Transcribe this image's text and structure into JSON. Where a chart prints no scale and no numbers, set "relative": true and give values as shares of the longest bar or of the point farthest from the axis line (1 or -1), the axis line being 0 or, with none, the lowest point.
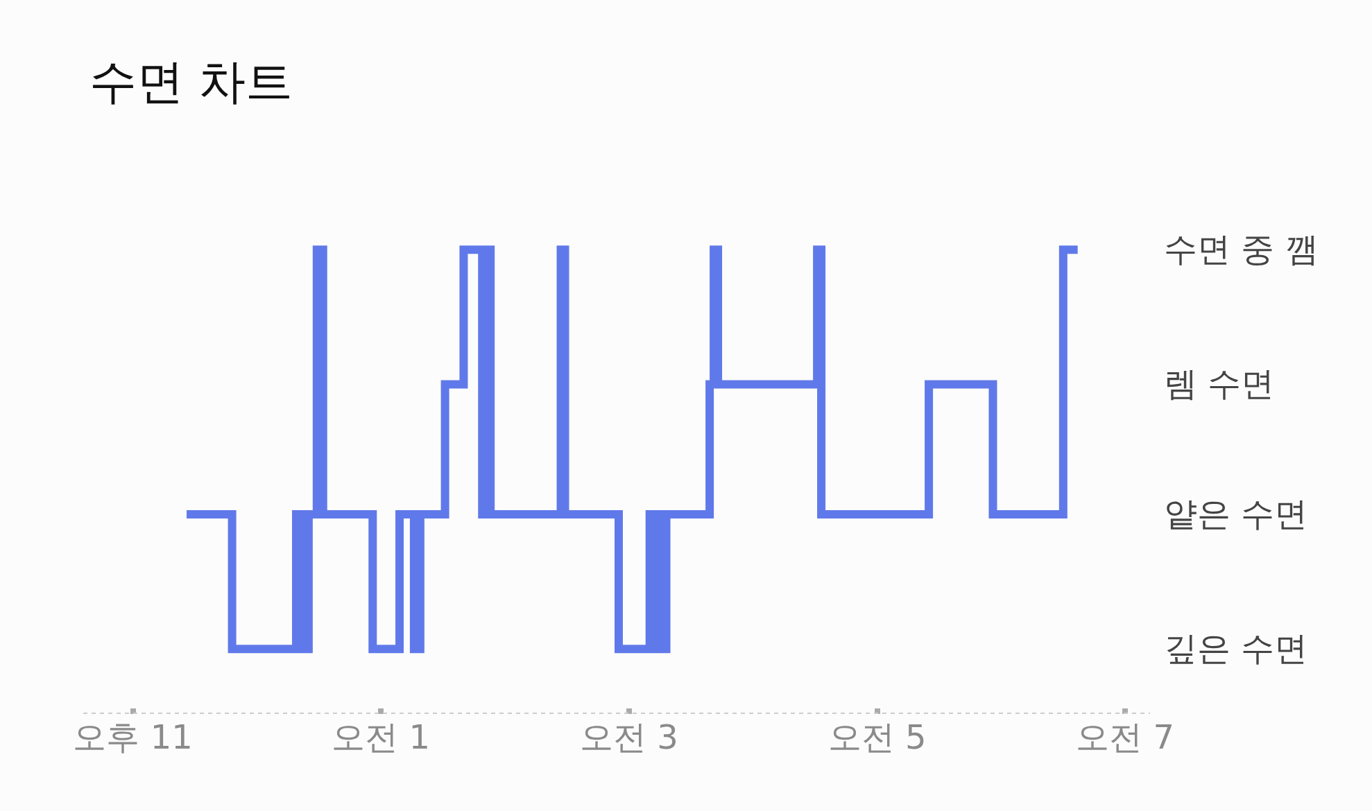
{
  "chart_data": {
    "type": "step",
    "title": "수면 차트",
    "relative": true,
    "x": [
      "--01-01T23:26",
      "--01-01T23:48",
      "--01-02T00:19",
      "--01-02T00:22",
      "--01-02T00:25",
      "--01-02T00:29",
      "--01-02T00:32",
      "--01-02T00:56",
      "--01-02T01:09",
      "--01-02T01:16",
      "--01-02T01:19",
      "--01-02T01:31",
      "--01-02T01:40",
      "--01-02T01:49",
      "--01-02T01:50",
      "--01-02T01:53",
      "--01-02T02:27",
      "--01-02T02:29",
      "--01-02T02:55",
      "--01-02T03:10",
      "--01-02T03:12",
      "--01-02T03:14",
      "--01-02T03:16",
      "--01-02T03:18",
      "--01-02T03:39",
      "--01-02T03:41",
      "--01-02T03:43",
      "--01-02T04:31",
      "--01-02T04:33",
      "--01-02T05:25",
      "--01-02T05:56",
      "--01-02T06:30",
      "--01-02T06:37"
    ],
    "series": [
      {
        "color": "#6079ea",
        "values": [
          0.43,
          0.14,
          0.43,
          0.14,
          0.43,
          1,
          0.43,
          0.14,
          0.43,
          0.14,
          0.43,
          0.71,
          1,
          0.43,
          1,
          0.43,
          1,
          0.43,
          0.14,
          0.43,
          0.14,
          0.43,
          0.14,
          0.43,
          0.71,
          1,
          0.71,
          1,
          0.43,
          0.71,
          0.43,
          1,
          1
        ]
      }
    ],
    "xlim": [
      "--01-01T22:36",
      "--01-02T07:12"
    ],
    "xticks": [
      {
        "value": "--01-01T23:00",
        "label": "오후 11"
      },
      {
        "value": "--01-02T01:00",
        "label": "오전 1"
      },
      {
        "value": "--01-02T03:00",
        "label": "오전 3"
      },
      {
        "value": "--01-02T05:00",
        "label": "오전 5"
      },
      {
        "value": "--01-02T07:00",
        "label": "오전 7"
      }
    ],
    "annotations": [
      "수면 중 깸",
      "렘 수면",
      "얕은 수면",
      "깊은 수면"
    ],
    "line_style": "solid",
    "marker": "none"
  }
}
